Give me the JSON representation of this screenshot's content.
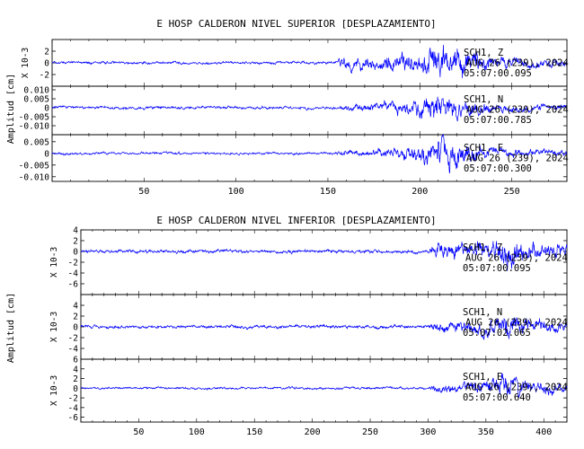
{
  "chart_data": [
    {
      "type": "line",
      "title": "E HOSP CALDERON NIVEL SUPERIOR [DESPLAZAMIENTO]",
      "ylabel": "Amplitud [cm]",
      "xlim": [
        0,
        280
      ],
      "xticks": [
        50,
        100,
        150,
        200,
        250
      ],
      "line_color": "#0000ff",
      "series": [
        {
          "name": "SCH1 Z",
          "unit_label": "X 10-3",
          "ylim": [
            -4,
            4
          ],
          "yticks": [
            -2,
            0,
            2
          ],
          "channel": "SCH1, Z",
          "date": "AUG 26 (239), 2024",
          "time": "05:07:00.095",
          "profile": [
            [
              0,
              0.35
            ],
            [
              155,
              0.35
            ],
            [
              157,
              1.6
            ],
            [
              175,
              1.8
            ],
            [
              188,
              2.2
            ],
            [
              200,
              3.2
            ],
            [
              205,
              3.8
            ],
            [
              212,
              4.0
            ],
            [
              222,
              3.9
            ],
            [
              240,
              1.7
            ],
            [
              280,
              1.1
            ]
          ]
        },
        {
          "name": "SCH1 N",
          "unit_label": "",
          "ylim": [
            -0.015,
            0.012
          ],
          "yticks": [
            -0.01,
            -0.005,
            0.0,
            0.005,
            0.01
          ],
          "channel": "SCH1, N",
          "date": "AUG 26 (239), 2024",
          "time": "05:07:00.785",
          "profile": [
            [
              0,
              0.0012
            ],
            [
              155,
              0.0012
            ],
            [
              157,
              0.0025
            ],
            [
              175,
              0.004
            ],
            [
              190,
              0.005
            ],
            [
              200,
              0.0075
            ],
            [
              205,
              0.0095
            ],
            [
              212,
              0.0105
            ],
            [
              222,
              0.008
            ],
            [
              240,
              0.0035
            ],
            [
              280,
              0.0022
            ]
          ]
        },
        {
          "name": "SCH1 E",
          "unit_label": "",
          "ylim": [
            -0.012,
            0.008
          ],
          "yticks": [
            -0.01,
            -0.005,
            0.0,
            0.005
          ],
          "channel": "SCH1, E",
          "date": "AUG 26 (239), 2024",
          "time": "05:07:00.300",
          "profile": [
            [
              0,
              0.0008
            ],
            [
              155,
              0.0008
            ],
            [
              157,
              0.0018
            ],
            [
              175,
              0.0025
            ],
            [
              190,
              0.0035
            ],
            [
              200,
              0.0055
            ],
            [
              205,
              0.0075
            ],
            [
              212,
              0.0095
            ],
            [
              222,
              0.007
            ],
            [
              240,
              0.0028
            ],
            [
              280,
              0.0018
            ]
          ]
        }
      ]
    },
    {
      "type": "line",
      "title": "E HOSP CALDERON NIVEL INFERIOR [DESPLAZAMIENTO]",
      "ylabel": "Amplitud [cm]",
      "xlim": [
        0,
        420
      ],
      "xticks": [
        50,
        100,
        150,
        200,
        250,
        300,
        350,
        400
      ],
      "line_color": "#0000ff",
      "series": [
        {
          "name": "SCH1 Z",
          "unit_label": "X 10-3",
          "ylim": [
            -8,
            4
          ],
          "yticks": [
            -6,
            -4,
            -2,
            0,
            2,
            4
          ],
          "channel": "SCH1, Z",
          "date": "AUG 26 (239), 2024",
          "time": "05:07:00.095",
          "profile": [
            [
              0,
              0.45
            ],
            [
              300,
              0.45
            ],
            [
              303,
              2.2
            ],
            [
              330,
              2.5
            ],
            [
              355,
              3.0
            ],
            [
              368,
              3.8
            ],
            [
              378,
              3.5
            ],
            [
              390,
              2.3
            ],
            [
              420,
              1.6
            ]
          ]
        },
        {
          "name": "SCH1 N",
          "unit_label": "X 10-3",
          "ylim": [
            -6,
            6
          ],
          "yticks": [
            -4,
            -2,
            0,
            2,
            4
          ],
          "channel": "SCH1, N",
          "date": "AUG 26 (239), 2024",
          "time": "05:07:02.065",
          "profile": [
            [
              0,
              0.45
            ],
            [
              300,
              0.45
            ],
            [
              303,
              1.4
            ],
            [
              330,
              1.6
            ],
            [
              355,
              2.4
            ],
            [
              368,
              3.2
            ],
            [
              378,
              3.0
            ],
            [
              390,
              1.9
            ],
            [
              420,
              1.2
            ]
          ]
        },
        {
          "name": "SCH1 E",
          "unit_label": "X 10-3",
          "ylim": [
            -7,
            6
          ],
          "yticks": [
            -6,
            -4,
            -2,
            0,
            2,
            4,
            6
          ],
          "channel": "SCH1, E",
          "date": "AUG 26 (239), 2024",
          "time": "05:07:00.640",
          "profile": [
            [
              0,
              0.35
            ],
            [
              300,
              0.35
            ],
            [
              303,
              1.0
            ],
            [
              330,
              1.5
            ],
            [
              355,
              2.6
            ],
            [
              368,
              3.6
            ],
            [
              378,
              3.3
            ],
            [
              390,
              2.0
            ],
            [
              420,
              1.3
            ]
          ]
        }
      ]
    }
  ]
}
